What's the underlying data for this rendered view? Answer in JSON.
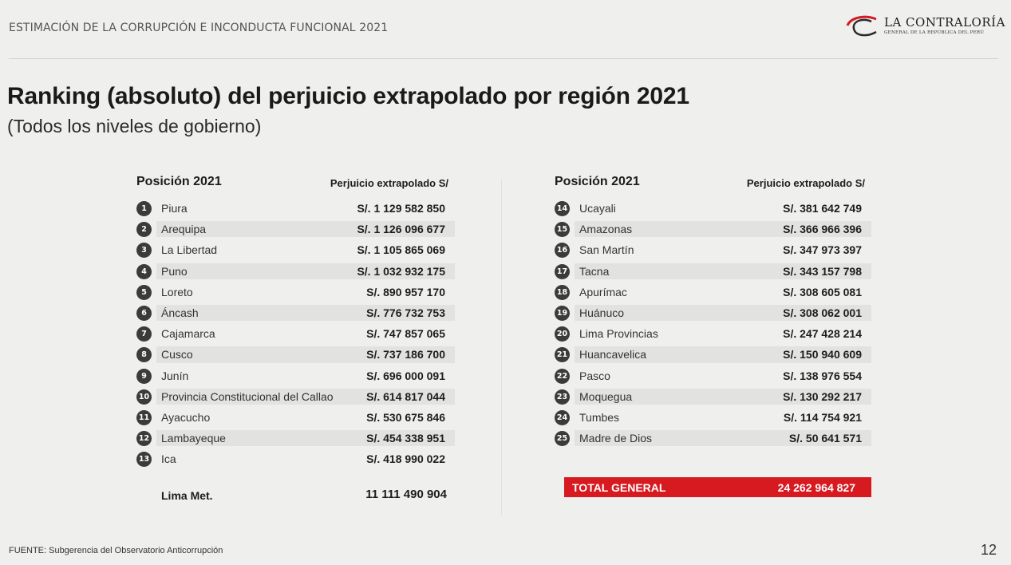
{
  "header": {
    "title": "ESTIMACIÓN DE LA CORRUPCIÓN E INCONDUCTA FUNCIONAL 2021",
    "logo_name": "LA CONTRALORÍA",
    "logo_subtitle": "GENERAL DE LA REPÚBLICA DEL PERÚ"
  },
  "title": "Ranking (absoluto) del perjuicio extrapolado por región 2021",
  "subtitle": "(Todos los niveles de gobierno)",
  "columns": {
    "position": "Posición 2021",
    "amount": "Perjuicio extrapolado S/"
  },
  "left_rows": [
    {
      "rank": "1",
      "region": "Piura",
      "amount": "S/. 1 129 582 850"
    },
    {
      "rank": "2",
      "region": "Arequipa",
      "amount": "S/. 1 126 096 677"
    },
    {
      "rank": "3",
      "region": "La Libertad",
      "amount": "S/. 1 105 865 069"
    },
    {
      "rank": "4",
      "region": "Puno",
      "amount": "S/. 1 032 932 175"
    },
    {
      "rank": "5",
      "region": "Loreto",
      "amount": "S/. 890 957 170"
    },
    {
      "rank": "6",
      "region": "Áncash",
      "amount": "S/. 776 732 753"
    },
    {
      "rank": "7",
      "region": "Cajamarca",
      "amount": "S/. 747 857 065"
    },
    {
      "rank": "8",
      "region": "Cusco",
      "amount": "S/. 737 186 700"
    },
    {
      "rank": "9",
      "region": "Junín",
      "amount": "S/. 696 000 091"
    },
    {
      "rank": "10",
      "region": "Provincia Constitucional del Callao",
      "amount": "S/. 614 817 044"
    },
    {
      "rank": "11",
      "region": "Ayacucho",
      "amount": "S/. 530 675 846"
    },
    {
      "rank": "12",
      "region": "Lambayeque",
      "amount": "S/. 454 338 951"
    },
    {
      "rank": "13",
      "region": "Ica",
      "amount": "S/. 418 990 022"
    }
  ],
  "right_rows": [
    {
      "rank": "14",
      "region": "Ucayali",
      "amount": "S/. 381 642 749"
    },
    {
      "rank": "15",
      "region": "Amazonas",
      "amount": "S/. 366 966 396"
    },
    {
      "rank": "16",
      "region": "San Martín",
      "amount": "S/. 347 973 397"
    },
    {
      "rank": "17",
      "region": "Tacna",
      "amount": "S/. 343 157 798"
    },
    {
      "rank": "18",
      "region": "Apurímac",
      "amount": "S/. 308 605 081"
    },
    {
      "rank": "19",
      "region": "Huánuco",
      "amount": "S/. 308 062 001"
    },
    {
      "rank": "20",
      "region": "Lima Provincias",
      "amount": "S/. 247 428 214"
    },
    {
      "rank": "21",
      "region": "Huancavelica",
      "amount": "S/. 150 940 609"
    },
    {
      "rank": "22",
      "region": "Pasco",
      "amount": "S/. 138 976 554"
    },
    {
      "rank": "23",
      "region": "Moquegua",
      "amount": "S/. 130 292 217"
    },
    {
      "rank": "24",
      "region": "Tumbes",
      "amount": "S/. 114 754 921"
    },
    {
      "rank": "25",
      "region": "Madre de Dios",
      "amount": "S/. 50 641 571"
    }
  ],
  "lima_met": {
    "label": "Lima Met.",
    "value": "11 111 490 904"
  },
  "total": {
    "label": "TOTAL GENERAL",
    "value": "24 262 964 827",
    "color": "#d71920"
  },
  "footer": "FUENTE: Subgerencia del Observatorio Anticorrupción",
  "page_number": "12"
}
